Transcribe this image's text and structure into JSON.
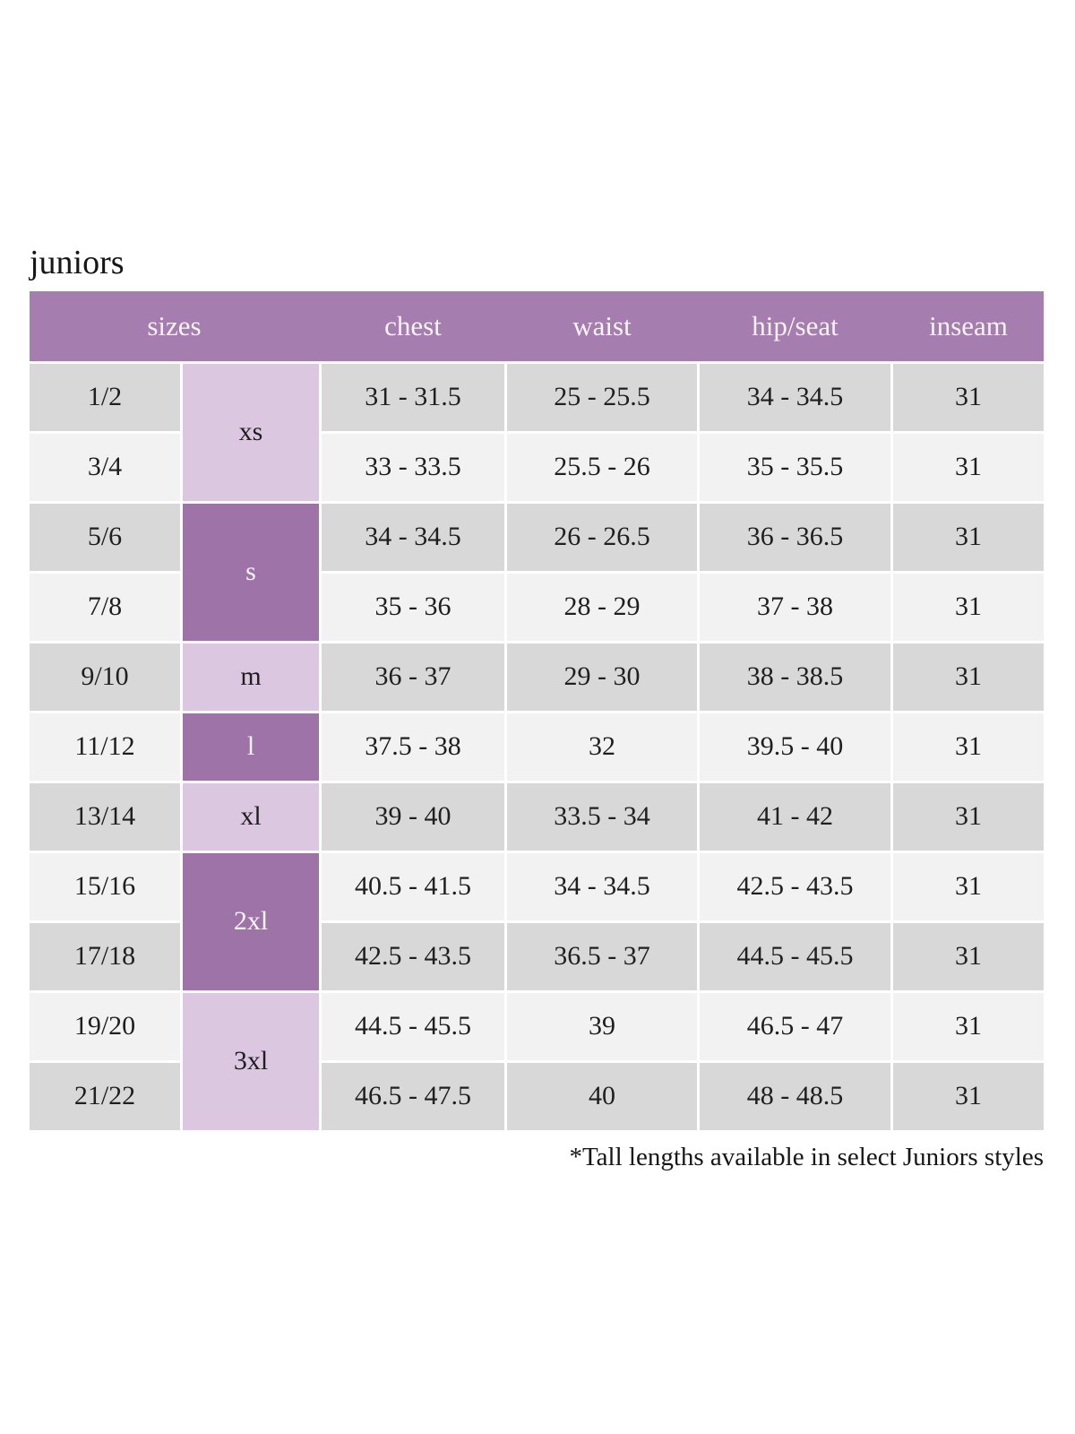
{
  "chart_data": {
    "type": "table",
    "title": "juniors",
    "columns": [
      "sizes",
      "chest",
      "waist",
      "hip/seat",
      "inseam"
    ],
    "size_groups": [
      {
        "label": "xs",
        "rows": 2,
        "tone": "light-purple"
      },
      {
        "label": "s",
        "rows": 2,
        "tone": "dark-purple"
      },
      {
        "label": "m",
        "rows": 1,
        "tone": "light-purple"
      },
      {
        "label": "l",
        "rows": 1,
        "tone": "dark-purple"
      },
      {
        "label": "xl",
        "rows": 1,
        "tone": "light-purple"
      },
      {
        "label": "2xl",
        "rows": 2,
        "tone": "dark-purple"
      },
      {
        "label": "3xl",
        "rows": 2,
        "tone": "light-purple"
      }
    ],
    "rows": [
      {
        "size": "1/2",
        "chest": "31 - 31.5",
        "waist": "25 - 25.5",
        "hip_seat": "34 - 34.5",
        "inseam": "31"
      },
      {
        "size": "3/4",
        "chest": "33 - 33.5",
        "waist": "25.5 - 26",
        "hip_seat": "35 - 35.5",
        "inseam": "31"
      },
      {
        "size": "5/6",
        "chest": "34 - 34.5",
        "waist": "26 - 26.5",
        "hip_seat": "36 - 36.5",
        "inseam": "31"
      },
      {
        "size": "7/8",
        "chest": "35 - 36",
        "waist": "28 - 29",
        "hip_seat": "37 - 38",
        "inseam": "31"
      },
      {
        "size": "9/10",
        "chest": "36 - 37",
        "waist": "29 - 30",
        "hip_seat": "38 - 38.5",
        "inseam": "31"
      },
      {
        "size": "11/12",
        "chest": "37.5 - 38",
        "waist": "32",
        "hip_seat": "39.5 - 40",
        "inseam": "31"
      },
      {
        "size": "13/14",
        "chest": "39 - 40",
        "waist": "33.5 - 34",
        "hip_seat": "41 - 42",
        "inseam": "31"
      },
      {
        "size": "15/16",
        "chest": "40.5 - 41.5",
        "waist": "34 - 34.5",
        "hip_seat": "42.5 - 43.5",
        "inseam": "31"
      },
      {
        "size": "17/18",
        "chest": "42.5 - 43.5",
        "waist": "36.5 - 37",
        "hip_seat": "44.5 - 45.5",
        "inseam": "31"
      },
      {
        "size": "19/20",
        "chest": "44.5 - 45.5",
        "waist": "39",
        "hip_seat": "46.5 - 47",
        "inseam": "31"
      },
      {
        "size": "21/22",
        "chest": "46.5 - 47.5",
        "waist": "40",
        "hip_seat": "48 - 48.5",
        "inseam": "31"
      }
    ],
    "footnote": "*Tall lengths available in select Juniors styles",
    "colors": {
      "header_purple": "#a57dae",
      "dark_purple_cell": "#9d73a8",
      "light_purple_cell": "#dbc7e0",
      "row_gray_dark": "#d8d8d8",
      "row_gray_light": "#f2f2f3",
      "header_text": "#f8f4f8",
      "body_text": "#1f1f1f"
    },
    "layout_hints": {
      "grid": "off",
      "merged_size_column": true,
      "row_shading": "alternating"
    }
  }
}
